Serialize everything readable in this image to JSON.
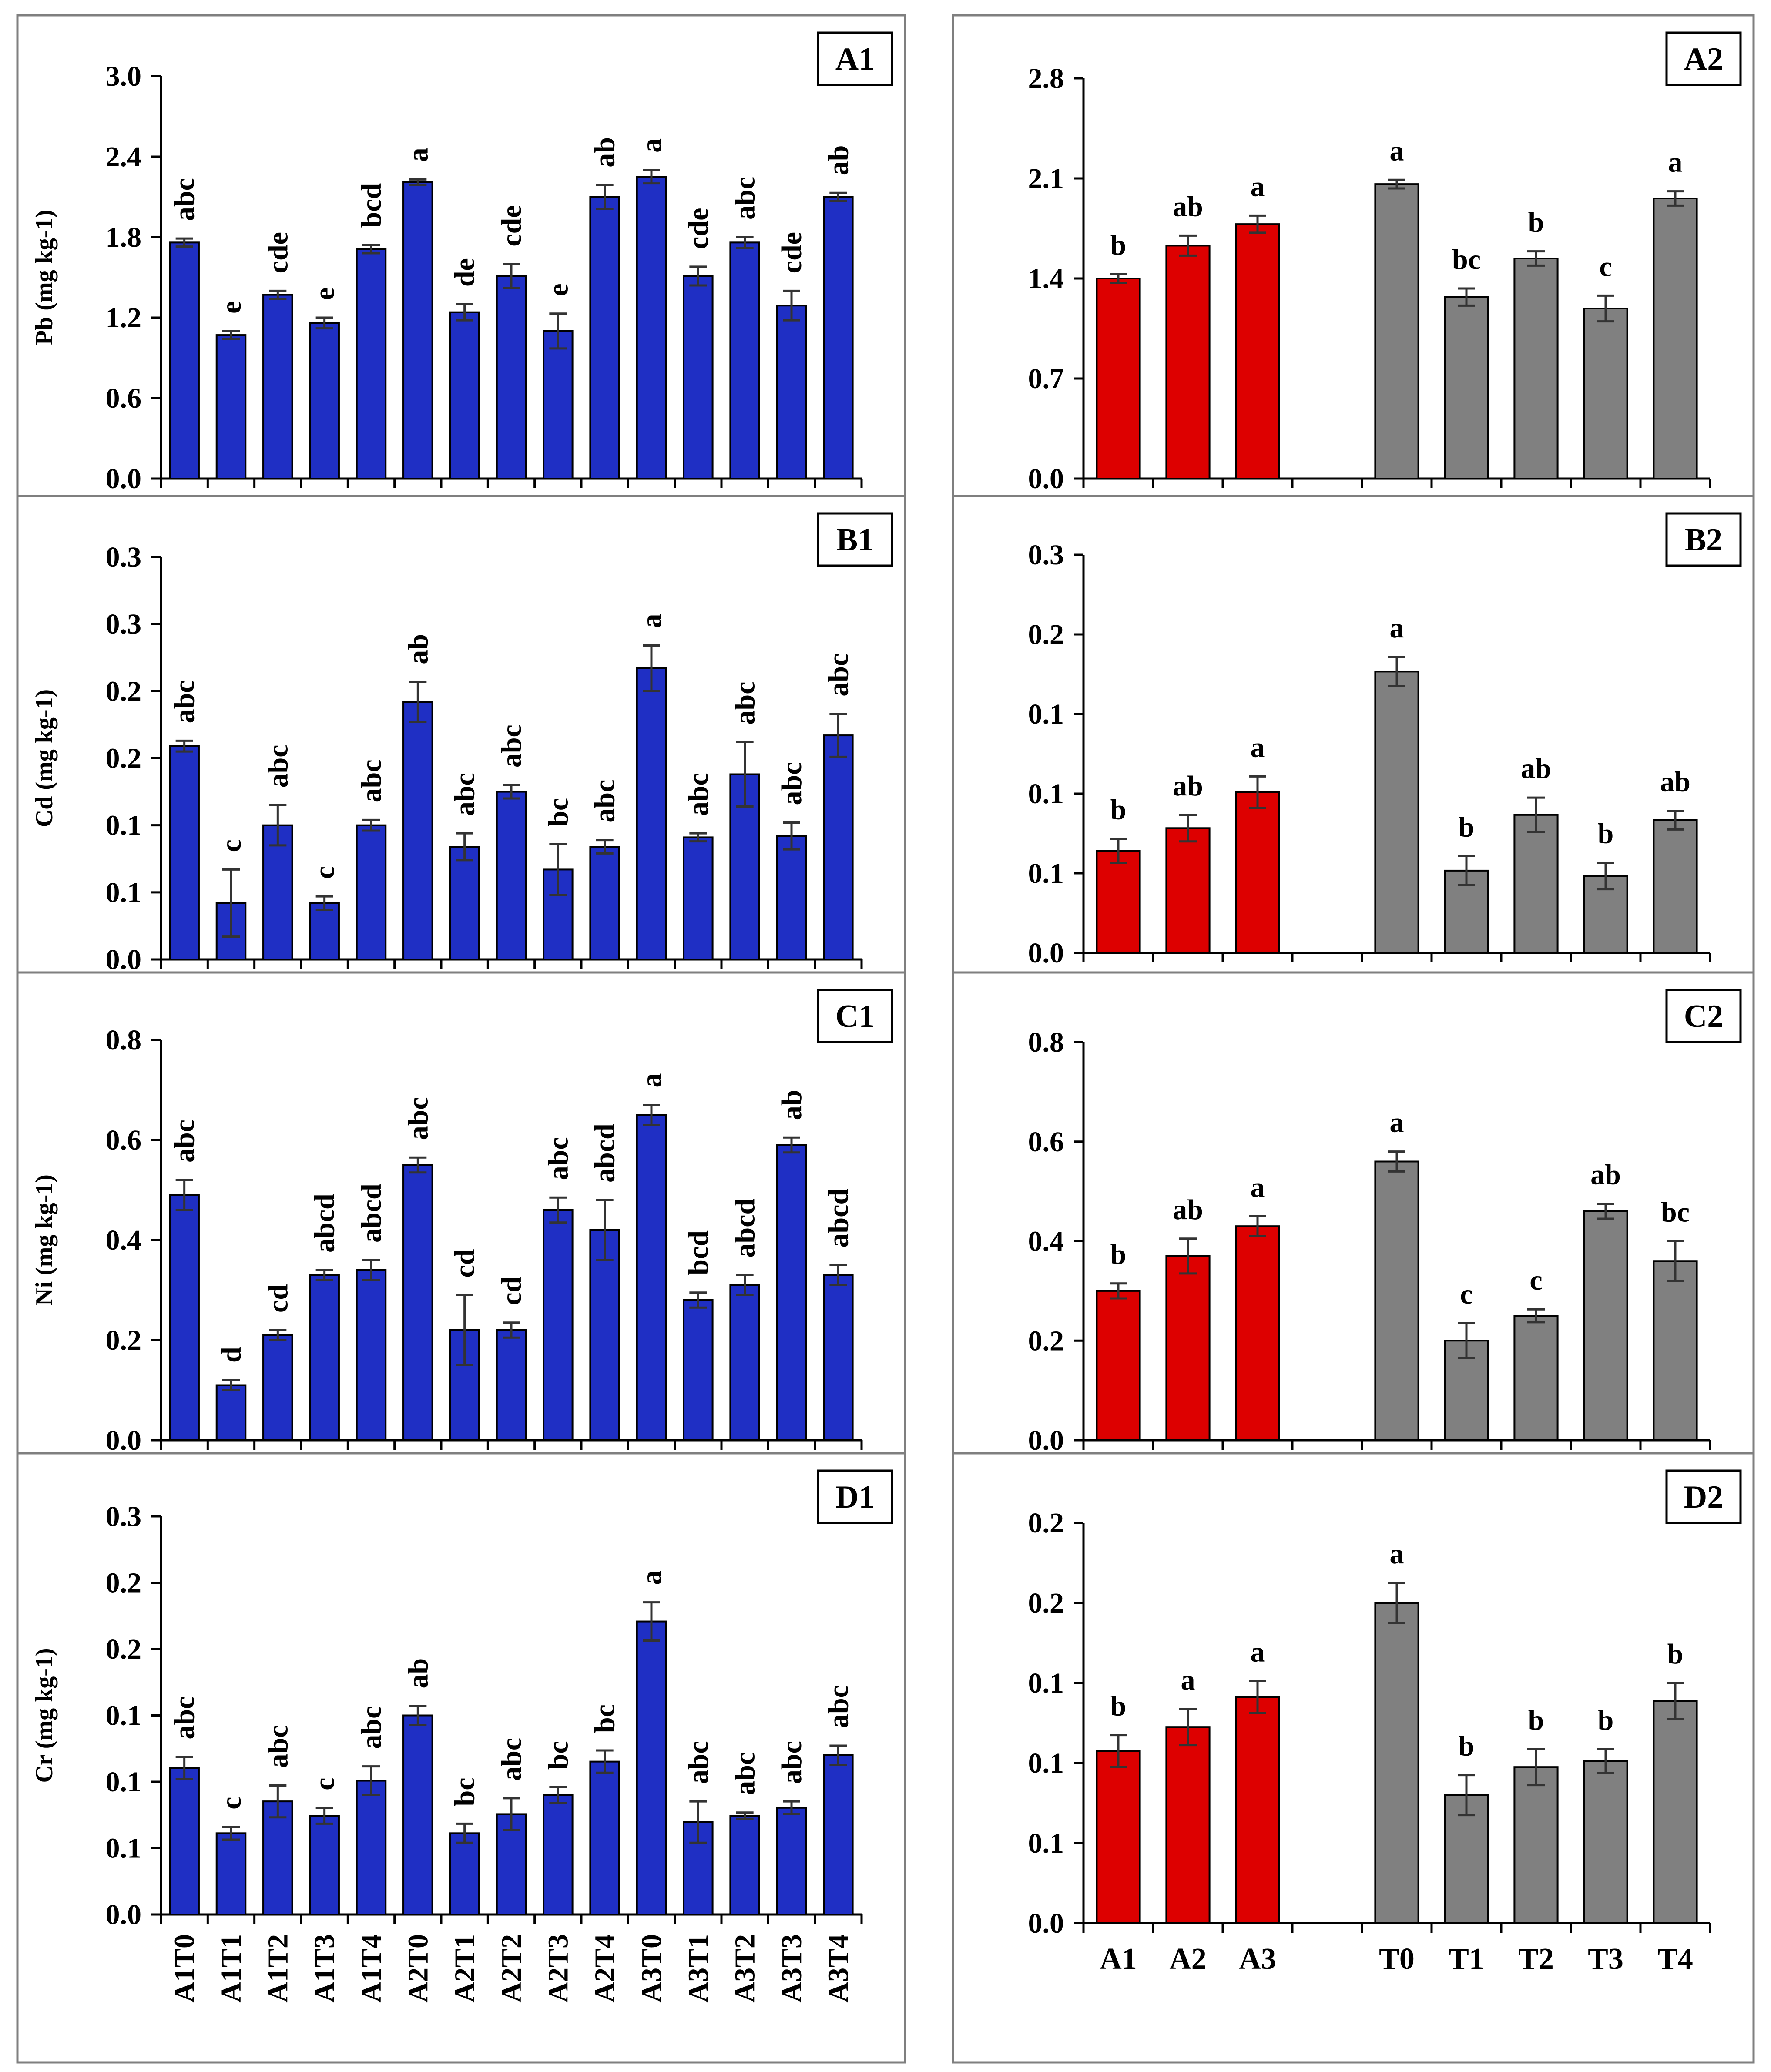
{
  "colors": {
    "blue": "#1f2fc4",
    "red": "#dd0000",
    "gray": "#808080",
    "axis": "#000000",
    "frame": "#7f7f7f"
  },
  "chart_data": [
    {
      "id": "A1",
      "type": "bar",
      "panel_label": "A1",
      "ylabel": "Pb (mg kg-1)",
      "yticks": [
        "0.0",
        "0.6",
        "1.2",
        "1.8",
        "2.4",
        "3.0"
      ],
      "ylim": [
        0,
        3.0
      ],
      "categories": [
        "A1T0",
        "A1T1",
        "A1T2",
        "A1T3",
        "A1T4",
        "A2T0",
        "A2T1",
        "A2T2",
        "A2T3",
        "A2T4",
        "A3T0",
        "A3T1",
        "A3T2",
        "A3T3",
        "A3T4"
      ],
      "values": [
        1.76,
        1.07,
        1.37,
        1.16,
        1.71,
        2.21,
        1.24,
        1.51,
        1.1,
        2.1,
        2.25,
        1.51,
        1.76,
        1.29,
        2.1
      ],
      "errors": [
        0.03,
        0.03,
        0.03,
        0.04,
        0.03,
        0.02,
        0.06,
        0.09,
        0.13,
        0.09,
        0.05,
        0.07,
        0.04,
        0.11,
        0.03
      ],
      "letters": [
        "abc",
        "e",
        "cde",
        "e",
        "bcd",
        "a",
        "de",
        "cde",
        "e",
        "ab",
        "a",
        "cde",
        "abc",
        "cde",
        "ab"
      ],
      "letter_orientation": "vertical",
      "show_xticklabels": false
    },
    {
      "id": "A2",
      "type": "bar",
      "panel_label": "A2",
      "ylabel": "",
      "yticks": [
        "0.0",
        "0.7",
        "1.4",
        "2.1",
        "2.8"
      ],
      "ylim": [
        0,
        2.8
      ],
      "categories": [
        "A1",
        "A2",
        "A3",
        "",
        "T0",
        "T1",
        "T2",
        "T3",
        "T4"
      ],
      "values": [
        1.4,
        1.63,
        1.78,
        null,
        2.06,
        1.27,
        1.54,
        1.19,
        1.96
      ],
      "errors": [
        0.03,
        0.07,
        0.06,
        null,
        0.03,
        0.06,
        0.05,
        0.09,
        0.05
      ],
      "letters": [
        "b",
        "ab",
        "a",
        "",
        "a",
        "bc",
        "b",
        "c",
        "a"
      ],
      "series_colors": [
        "red",
        "red",
        "red",
        "",
        "gray",
        "gray",
        "gray",
        "gray",
        "gray"
      ],
      "letter_orientation": "horizontal",
      "show_xticklabels": false
    },
    {
      "id": "B1",
      "type": "bar",
      "panel_label": "B1",
      "ylabel": "Cd (mg kg-1)",
      "yticks": [
        "0.0",
        "0.1",
        "0.1",
        "0.2",
        "0.2",
        "0.3",
        "0.3"
      ],
      "ylim": [
        0,
        0.3
      ],
      "categories": [
        "A1T0",
        "A1T1",
        "A1T2",
        "A1T3",
        "A1T4",
        "A2T0",
        "A2T1",
        "A2T2",
        "A2T3",
        "A2T4",
        "A3T0",
        "A3T1",
        "A3T2",
        "A3T3",
        "A3T4"
      ],
      "values": [
        0.159,
        0.042,
        0.1,
        0.042,
        0.1,
        0.192,
        0.084,
        0.125,
        0.067,
        0.084,
        0.217,
        0.091,
        0.138,
        0.092,
        0.167
      ],
      "errors": [
        0.004,
        0.025,
        0.015,
        0.005,
        0.004,
        0.015,
        0.01,
        0.005,
        0.019,
        0.005,
        0.017,
        0.003,
        0.024,
        0.01,
        0.016
      ],
      "letters": [
        "abc",
        "c",
        "abc",
        "c",
        "abc",
        "ab",
        "abc",
        "abc",
        "bc",
        "abc",
        "a",
        "abc",
        "abc",
        "abc",
        "abc"
      ],
      "letter_orientation": "vertical",
      "show_xticklabels": false
    },
    {
      "id": "B2",
      "type": "bar",
      "panel_label": "B2",
      "ylabel": "",
      "yticks": [
        "0.0",
        "0.1",
        "0.1",
        "0.1",
        "0.2",
        "0.3"
      ],
      "ylim": [
        0,
        0.3
      ],
      "categories": [
        "A1",
        "A2",
        "A3",
        "",
        "T0",
        "T1",
        "T2",
        "T3",
        "T4"
      ],
      "values": [
        0.077,
        0.094,
        0.121,
        null,
        0.212,
        0.062,
        0.104,
        0.058,
        0.1
      ],
      "errors": [
        0.009,
        0.01,
        0.012,
        null,
        0.011,
        0.011,
        0.013,
        0.01,
        0.007
      ],
      "letters": [
        "b",
        "ab",
        "a",
        "",
        "a",
        "b",
        "ab",
        "b",
        "ab"
      ],
      "series_colors": [
        "red",
        "red",
        "red",
        "",
        "gray",
        "gray",
        "gray",
        "gray",
        "gray"
      ],
      "letter_orientation": "horizontal",
      "show_xticklabels": false
    },
    {
      "id": "C1",
      "type": "bar",
      "panel_label": "C1",
      "ylabel": "Ni (mg kg-1)",
      "yticks": [
        "0.0",
        "0.2",
        "0.4",
        "0.6",
        "0.8"
      ],
      "ylim": [
        0,
        0.8
      ],
      "categories": [
        "A1T0",
        "A1T1",
        "A1T2",
        "A1T3",
        "A1T4",
        "A2T0",
        "A2T1",
        "A2T2",
        "A2T3",
        "A2T4",
        "A3T0",
        "A3T1",
        "A3T2",
        "A3T3",
        "A3T4"
      ],
      "values": [
        0.49,
        0.11,
        0.21,
        0.33,
        0.34,
        0.55,
        0.22,
        0.22,
        0.46,
        0.42,
        0.65,
        0.28,
        0.31,
        0.59,
        0.33
      ],
      "errors": [
        0.03,
        0.01,
        0.01,
        0.01,
        0.02,
        0.015,
        0.07,
        0.015,
        0.025,
        0.06,
        0.02,
        0.015,
        0.02,
        0.015,
        0.02
      ],
      "letters": [
        "abc",
        "d",
        "cd",
        "abcd",
        "abcd",
        "abc",
        "cd",
        "cd",
        "abc",
        "abcd",
        "a",
        "bcd",
        "abcd",
        "ab",
        "abcd"
      ],
      "letter_orientation": "vertical",
      "show_xticklabels": false
    },
    {
      "id": "C2",
      "type": "bar",
      "panel_label": "C2",
      "ylabel": "",
      "yticks": [
        "0.0",
        "0.2",
        "0.4",
        "0.6",
        "0.8"
      ],
      "ylim": [
        0,
        0.8
      ],
      "categories": [
        "A1",
        "A2",
        "A3",
        "",
        "T0",
        "T1",
        "T2",
        "T3",
        "T4"
      ],
      "values": [
        0.3,
        0.37,
        0.43,
        null,
        0.56,
        0.2,
        0.25,
        0.46,
        0.36
      ],
      "errors": [
        0.015,
        0.035,
        0.02,
        null,
        0.02,
        0.035,
        0.013,
        0.015,
        0.04
      ],
      "letters": [
        "b",
        "ab",
        "a",
        "",
        "a",
        "c",
        "c",
        "ab",
        "bc"
      ],
      "series_colors": [
        "red",
        "red",
        "red",
        "",
        "gray",
        "gray",
        "gray",
        "gray",
        "gray"
      ],
      "letter_orientation": "horizontal",
      "show_xticklabels": false
    },
    {
      "id": "D1",
      "type": "bar",
      "panel_label": "D1",
      "ylabel": "Cr (mg kg-1)",
      "yticks": [
        "0.0",
        "0.1",
        "0.1",
        "0.1",
        "0.2",
        "0.2",
        "0.3"
      ],
      "ylim": [
        0,
        0.25
      ],
      "categories": [
        "A1T0",
        "A1T1",
        "A1T2",
        "A1T3",
        "A1T4",
        "A2T0",
        "A2T1",
        "A2T2",
        "A2T3",
        "A2T4",
        "A3T0",
        "A3T1",
        "A3T2",
        "A3T3",
        "A3T4"
      ],
      "values": [
        0.092,
        0.051,
        0.071,
        0.062,
        0.084,
        0.125,
        0.051,
        0.063,
        0.075,
        0.096,
        0.184,
        0.058,
        0.062,
        0.067,
        0.1
      ],
      "errors": [
        0.007,
        0.004,
        0.01,
        0.005,
        0.009,
        0.006,
        0.006,
        0.01,
        0.005,
        0.007,
        0.012,
        0.013,
        0.002,
        0.004,
        0.006
      ],
      "letters": [
        "abc",
        "c",
        "abc",
        "c",
        "abc",
        "ab",
        "bc",
        "abc",
        "bc",
        "bc",
        "a",
        "abc",
        "abc",
        "abc",
        "abc"
      ],
      "letter_orientation": "vertical",
      "show_xticklabels": true
    },
    {
      "id": "D2",
      "type": "bar",
      "panel_label": "D2",
      "ylabel": "",
      "yticks": [
        "0.0",
        "0.1",
        "0.1",
        "0.1",
        "0.2",
        "0.2"
      ],
      "ylim": [
        0,
        0.2
      ],
      "categories": [
        "A1",
        "A2",
        "A3",
        "",
        "T0",
        "T1",
        "T2",
        "T3",
        "T4"
      ],
      "values": [
        0.086,
        0.098,
        0.113,
        null,
        0.16,
        0.064,
        0.078,
        0.081,
        0.111
      ],
      "errors": [
        0.008,
        0.009,
        0.008,
        null,
        0.01,
        0.01,
        0.009,
        0.006,
        0.009
      ],
      "letters": [
        "b",
        "a",
        "a",
        "",
        "a",
        "b",
        "b",
        "b",
        "b"
      ],
      "series_colors": [
        "red",
        "red",
        "red",
        "",
        "gray",
        "gray",
        "gray",
        "gray",
        "gray"
      ],
      "letter_orientation": "horizontal",
      "show_xticklabels": true
    }
  ]
}
